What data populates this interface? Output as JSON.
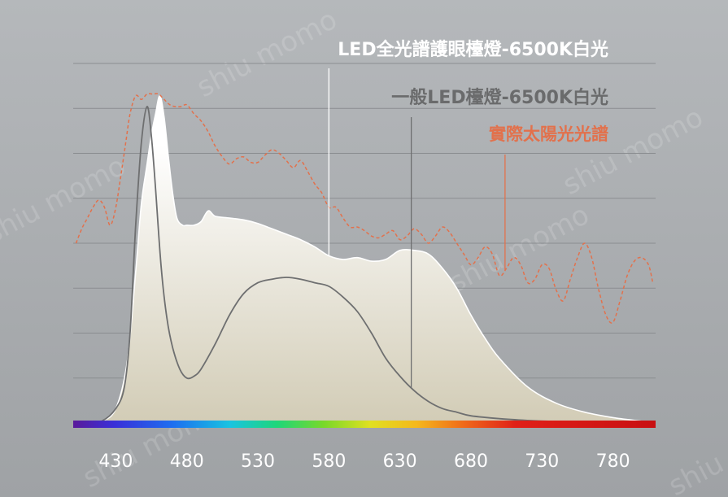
{
  "colors": {
    "background_top": "#b5b8bb",
    "background_bottom": "#9fa2a5",
    "gridline": "#8a8d90",
    "led_full_spectrum": "#ffffff",
    "led_full_fill_top": "#ffffff",
    "led_full_fill_bottom": "#d2ccb6",
    "normal_led": "#6e6f70",
    "sunlight": "#e2714c",
    "legend_full": "#ffffff",
    "legend_normal": "#6a6b6c",
    "legend_sun": "#e2714c",
    "tick_label": "#ffffff"
  },
  "watermark": "shiu momo",
  "chart_data": {
    "type": "area",
    "xlim": [
      400,
      810
    ],
    "ylim": [
      0,
      1
    ],
    "grid": true,
    "legend_placement": "top-right (callouts)",
    "x_ticks": [
      "430",
      "480",
      "530",
      "580",
      "630",
      "680",
      "730",
      "780"
    ],
    "spectrum_bar": true,
    "series": [
      {
        "name": "LED全光譜護眼檯燈-6500K白光",
        "style": "filled-area",
        "x": [
          408,
          420,
          430,
          438,
          444,
          448,
          452,
          455,
          458,
          461,
          464,
          467,
          470,
          473,
          477,
          480,
          485,
          490,
          495,
          500,
          510,
          520,
          530,
          540,
          550,
          560,
          570,
          580,
          590,
          600,
          610,
          620,
          630,
          640,
          650,
          660,
          670,
          680,
          690,
          700,
          720,
          740,
          760,
          780,
          800,
          808
        ],
        "values": [
          0,
          0.005,
          0.04,
          0.17,
          0.42,
          0.61,
          0.72,
          0.8,
          0.86,
          0.91,
          0.85,
          0.74,
          0.64,
          0.57,
          0.55,
          0.55,
          0.55,
          0.56,
          0.59,
          0.575,
          0.57,
          0.565,
          0.555,
          0.54,
          0.525,
          0.51,
          0.49,
          0.465,
          0.455,
          0.46,
          0.45,
          0.455,
          0.48,
          0.48,
          0.47,
          0.43,
          0.375,
          0.3,
          0.235,
          0.18,
          0.1,
          0.055,
          0.03,
          0.015,
          0.005,
          0
        ]
      },
      {
        "name": "一般LED檯燈-6500K白光",
        "style": "line",
        "x": [
          408,
          420,
          430,
          436,
          440,
          444,
          448,
          452,
          455,
          458,
          462,
          466,
          470,
          475,
          480,
          485,
          490,
          500,
          510,
          520,
          530,
          540,
          550,
          560,
          570,
          580,
          590,
          600,
          610,
          620,
          630,
          640,
          650,
          660,
          670,
          680,
          700,
          720,
          740,
          760,
          780,
          800,
          808
        ],
        "values": [
          0,
          0.005,
          0.04,
          0.1,
          0.25,
          0.55,
          0.78,
          0.88,
          0.8,
          0.65,
          0.43,
          0.29,
          0.21,
          0.15,
          0.125,
          0.13,
          0.15,
          0.22,
          0.3,
          0.36,
          0.39,
          0.4,
          0.405,
          0.4,
          0.39,
          0.38,
          0.35,
          0.31,
          0.25,
          0.18,
          0.13,
          0.09,
          0.06,
          0.04,
          0.03,
          0.02,
          0.012,
          0.007,
          0.004,
          0.003,
          0.002,
          0.001,
          0
        ]
      },
      {
        "name": "實際太陽光光譜",
        "style": "dashed",
        "x": [
          402,
          406,
          410,
          414,
          418,
          422,
          426,
          430,
          434,
          437,
          440,
          444,
          448,
          452,
          456,
          460,
          464,
          468,
          472,
          476,
          480,
          485,
          490,
          495,
          500,
          505,
          510,
          515,
          520,
          525,
          530,
          535,
          540,
          545,
          550,
          555,
          560,
          565,
          570,
          575,
          580,
          585,
          590,
          595,
          600,
          605,
          610,
          615,
          620,
          625,
          630,
          635,
          640,
          645,
          650,
          655,
          660,
          665,
          670,
          675,
          680,
          685,
          690,
          695,
          700,
          705,
          710,
          715,
          720,
          725,
          730,
          735,
          740,
          745,
          750,
          755,
          760,
          765,
          770,
          775,
          780,
          785,
          790,
          795,
          800,
          805,
          808
        ],
        "values": [
          0.5,
          0.54,
          0.57,
          0.6,
          0.62,
          0.6,
          0.55,
          0.6,
          0.7,
          0.78,
          0.86,
          0.91,
          0.9,
          0.915,
          0.915,
          0.915,
          0.9,
          0.885,
          0.88,
          0.88,
          0.885,
          0.86,
          0.84,
          0.81,
          0.77,
          0.74,
          0.72,
          0.735,
          0.74,
          0.725,
          0.725,
          0.745,
          0.76,
          0.75,
          0.73,
          0.71,
          0.73,
          0.7,
          0.665,
          0.64,
          0.6,
          0.6,
          0.57,
          0.545,
          0.545,
          0.535,
          0.52,
          0.515,
          0.525,
          0.535,
          0.51,
          0.52,
          0.54,
          0.525,
          0.5,
          0.52,
          0.545,
          0.53,
          0.5,
          0.47,
          0.44,
          0.46,
          0.49,
          0.47,
          0.41,
          0.43,
          0.46,
          0.44,
          0.39,
          0.4,
          0.44,
          0.43,
          0.37,
          0.34,
          0.4,
          0.46,
          0.5,
          0.46,
          0.37,
          0.3,
          0.28,
          0.34,
          0.41,
          0.45,
          0.46,
          0.44,
          0.39
        ]
      }
    ],
    "callouts": [
      {
        "series": "LED全光譜護眼檯燈-6500K白光",
        "x": 580,
        "label": "LED全光譜護眼檯燈-6500K白光"
      },
      {
        "series": "一般LED檯燈-6500K白光",
        "x": 638,
        "label": "一般LED檯燈-6500K白光"
      },
      {
        "series": "實際太陽光光譜",
        "x": 704,
        "label": "實際太陽光光譜"
      }
    ]
  }
}
